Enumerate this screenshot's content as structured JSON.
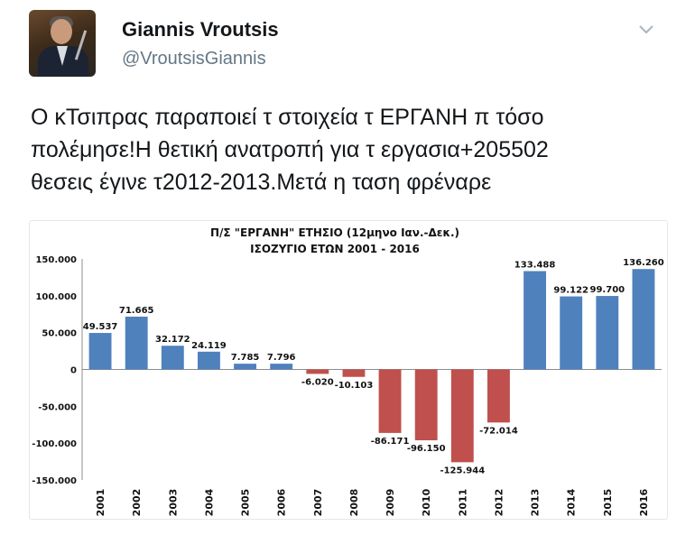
{
  "tweet": {
    "display_name": "Giannis Vroutsis",
    "handle": "@VroutsisGiannis",
    "text_lines": [
      "Ο κΤσιπρας παραποιεί τ στοιχεία  τ ΕΡΓΑΝΗ π τόσο",
      "πολέμησε!Η θετική ανατροπή για τ εργασια+205502",
      "θεσεις έγινε τ2012-2013.Μετά η ταση φρέναρε"
    ]
  },
  "icons": {
    "menu": "chevron-down-icon",
    "avatar": "profile-photo"
  },
  "colors": {
    "positive": "#4f81bd",
    "negative": "#c0504d",
    "handle": "#657786"
  },
  "chart_data": {
    "type": "bar",
    "title": "Π/Σ \"ΕΡΓΑΝΗ\" ΕΤΗΣΙΟ (12μηνο Ιαν.-Δεκ.)",
    "subtitle": "ΙΣΟΖΥΓΙΟ ΕΤΩΝ 2001 - 2016",
    "xlabel": "",
    "ylabel": "",
    "ylim": [
      -150000,
      150000
    ],
    "ytick_labels": [
      "150.000",
      "100.000",
      "50.000",
      "0",
      "-50.000",
      "-100.000",
      "-150.000"
    ],
    "categories": [
      "2001",
      "2002",
      "2003",
      "2004",
      "2005",
      "2006",
      "2007",
      "2008",
      "2009",
      "2010",
      "2011",
      "2012",
      "2013",
      "2014",
      "2015",
      "2016"
    ],
    "values": [
      49537,
      71665,
      32172,
      24119,
      7785,
      7796,
      -6020,
      -10103,
      -86171,
      -96150,
      -125944,
      -72014,
      133488,
      99122,
      99700,
      136260
    ],
    "data_labels": [
      "49.537",
      "71.665",
      "32.172",
      "24.119",
      "7.785",
      "7.796",
      "-6.020",
      "-10.103",
      "-86.171",
      "-96.150",
      "-125.944",
      "-72.014",
      "133.488",
      "99.122",
      "99.700",
      "136.260"
    ],
    "grid": false,
    "legend": "none"
  }
}
